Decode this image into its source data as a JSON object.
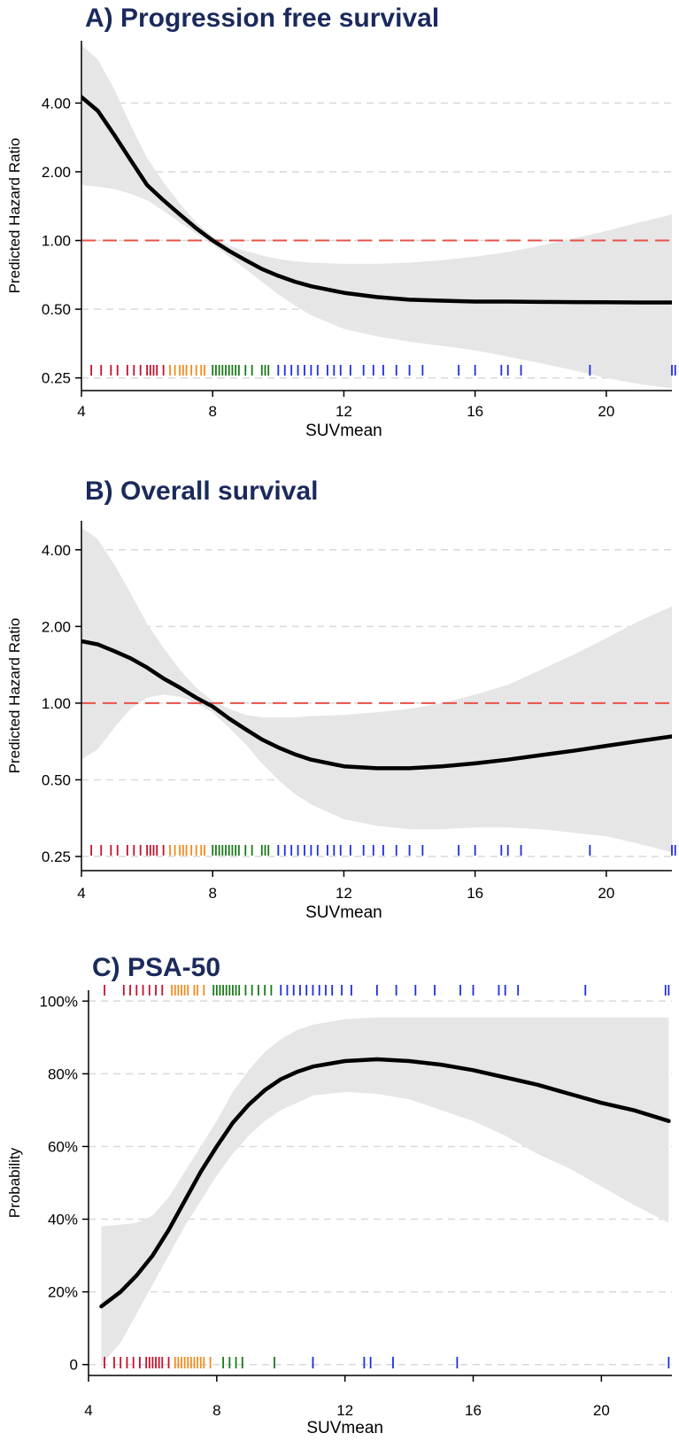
{
  "chart_data": [
    {
      "type": "line",
      "title": "A) Progression free survival",
      "xlabel": "SUVmean",
      "ylabel": "Predicted Hazard Ratio",
      "y_scale": "log2",
      "xlim": [
        4,
        22
      ],
      "ylim": [
        0.22,
        7.5
      ],
      "xticks": [
        4,
        8,
        12,
        16,
        20
      ],
      "xtick_labels": [
        "4",
        "8",
        "12",
        "16",
        "20"
      ],
      "yticks": [
        0.25,
        0.5,
        1,
        2,
        4
      ],
      "ytick_labels": [
        "0.25",
        "0.50",
        "1.00",
        "2.00",
        "4.00"
      ],
      "grid": "horizontal dashed",
      "reference_line": {
        "y": 1,
        "color": "#e8504a"
      },
      "line_color": "#000000",
      "band_color": "#e6e6e6",
      "series": [
        {
          "x": [
            4,
            4.5,
            5,
            5.5,
            6,
            6.5,
            7,
            7.5,
            8,
            8.5,
            9,
            9.5,
            10,
            10.5,
            11,
            12,
            13,
            14,
            15,
            16,
            17,
            18,
            19,
            20,
            21,
            22
          ],
          "y": [
            4.25,
            3.7,
            2.9,
            2.25,
            1.75,
            1.5,
            1.3,
            1.13,
            1.0,
            0.9,
            0.82,
            0.75,
            0.7,
            0.66,
            0.63,
            0.59,
            0.565,
            0.55,
            0.545,
            0.54,
            0.54,
            0.538,
            0.537,
            0.536,
            0.535,
            0.535
          ],
          "lower": [
            1.75,
            1.72,
            1.68,
            1.6,
            1.5,
            1.35,
            1.2,
            1.07,
            0.96,
            0.85,
            0.75,
            0.66,
            0.58,
            0.52,
            0.47,
            0.41,
            0.38,
            0.36,
            0.345,
            0.33,
            0.31,
            0.29,
            0.27,
            0.25,
            0.235,
            0.225
          ],
          "upper": [
            7.2,
            6.2,
            4.6,
            3.2,
            2.3,
            1.8,
            1.45,
            1.2,
            1.04,
            0.95,
            0.9,
            0.86,
            0.83,
            0.81,
            0.8,
            0.79,
            0.79,
            0.8,
            0.82,
            0.85,
            0.89,
            0.95,
            1.02,
            1.1,
            1.2,
            1.3
          ]
        }
      ],
      "rug": {
        "red": [
          4.3,
          4.6,
          4.9,
          5.1,
          5.4,
          5.6,
          5.8,
          6.0,
          6.1,
          6.2,
          6.3,
          6.5
        ],
        "orange": [
          6.7,
          6.85,
          7.0,
          7.1,
          7.2,
          7.35,
          7.5,
          7.65,
          7.75
        ],
        "green": [
          8.0,
          8.1,
          8.2,
          8.3,
          8.4,
          8.5,
          8.6,
          8.7,
          8.8,
          9.0,
          9.2,
          9.5,
          9.6,
          9.7
        ],
        "blue": [
          10.0,
          10.2,
          10.4,
          10.6,
          10.8,
          11.0,
          11.2,
          11.5,
          11.7,
          11.9,
          12.2,
          12.6,
          12.9,
          13.2,
          13.6,
          14.0,
          14.4,
          15.5,
          16.0,
          16.8,
          17.0,
          17.4,
          19.5,
          22.0,
          22.1
        ]
      }
    },
    {
      "type": "line",
      "title": "B) Overall survival",
      "xlabel": "SUVmean",
      "ylabel": "Predicted Hazard Ratio",
      "y_scale": "log2",
      "xlim": [
        4,
        22
      ],
      "ylim": [
        0.22,
        5.2
      ],
      "xticks": [
        4,
        8,
        12,
        16,
        20
      ],
      "xtick_labels": [
        "4",
        "8",
        "12",
        "16",
        "20"
      ],
      "yticks": [
        0.25,
        0.5,
        1,
        2,
        4
      ],
      "ytick_labels": [
        "0.25",
        "0.50",
        "1.00",
        "2.00",
        "4.00"
      ],
      "grid": "horizontal dashed",
      "reference_line": {
        "y": 1,
        "color": "#e8504a"
      },
      "line_color": "#000000",
      "band_color": "#e6e6e6",
      "series": [
        {
          "x": [
            4,
            4.5,
            5,
            5.5,
            6,
            6.5,
            7,
            7.5,
            8,
            8.5,
            9,
            9.5,
            10,
            10.5,
            11,
            12,
            13,
            14,
            15,
            16,
            17,
            18,
            19,
            20,
            21,
            22
          ],
          "y": [
            1.75,
            1.7,
            1.6,
            1.5,
            1.38,
            1.25,
            1.15,
            1.05,
            0.97,
            0.87,
            0.79,
            0.72,
            0.67,
            0.63,
            0.6,
            0.565,
            0.555,
            0.555,
            0.565,
            0.58,
            0.6,
            0.625,
            0.65,
            0.68,
            0.71,
            0.74
          ],
          "lower": [
            0.6,
            0.66,
            0.8,
            0.95,
            1.05,
            1.08,
            1.06,
            1.0,
            0.92,
            0.8,
            0.69,
            0.58,
            0.5,
            0.44,
            0.4,
            0.35,
            0.33,
            0.32,
            0.32,
            0.325,
            0.325,
            0.32,
            0.31,
            0.3,
            0.28,
            0.26
          ],
          "upper": [
            4.9,
            4.4,
            3.5,
            2.7,
            2.05,
            1.65,
            1.35,
            1.15,
            1.02,
            0.95,
            0.9,
            0.88,
            0.88,
            0.88,
            0.89,
            0.9,
            0.92,
            0.95,
            1.0,
            1.08,
            1.18,
            1.35,
            1.55,
            1.8,
            2.1,
            2.4
          ]
        }
      ],
      "rug": {
        "red": [
          4.3,
          4.6,
          4.9,
          5.1,
          5.4,
          5.6,
          5.8,
          6.0,
          6.1,
          6.2,
          6.3,
          6.5
        ],
        "orange": [
          6.7,
          6.85,
          7.0,
          7.1,
          7.2,
          7.35,
          7.5,
          7.65,
          7.75
        ],
        "green": [
          8.0,
          8.1,
          8.2,
          8.3,
          8.4,
          8.5,
          8.6,
          8.7,
          8.8,
          9.0,
          9.2,
          9.5,
          9.6,
          9.7
        ],
        "blue": [
          10.0,
          10.2,
          10.4,
          10.6,
          10.8,
          11.0,
          11.2,
          11.5,
          11.7,
          11.9,
          12.2,
          12.6,
          12.9,
          13.2,
          13.6,
          14.0,
          14.4,
          15.5,
          16.0,
          16.8,
          17.0,
          17.4,
          19.5,
          22.0,
          22.1
        ]
      }
    },
    {
      "type": "line",
      "title": "C) PSA-50",
      "xlabel": "SUVmean",
      "ylabel": "Probability",
      "y_scale": "linear",
      "xlim": [
        4,
        22.2
      ],
      "ylim": [
        -0.03,
        1.03
      ],
      "xticks": [
        4,
        8,
        12,
        16,
        20
      ],
      "xtick_labels": [
        "4",
        "8",
        "12",
        "16",
        "20"
      ],
      "yticks": [
        0,
        0.2,
        0.4,
        0.6,
        0.8,
        1.0
      ],
      "ytick_labels": [
        "0",
        "20%",
        "40%",
        "60%",
        "80%",
        "100%"
      ],
      "grid": "horizontal dashed",
      "line_color": "#000000",
      "band_color": "#e6e6e6",
      "series": [
        {
          "x": [
            4.4,
            5,
            5.5,
            6,
            6.5,
            7,
            7.5,
            8,
            8.5,
            9,
            9.5,
            10,
            10.5,
            11,
            12,
            13,
            14,
            15,
            16,
            17,
            18,
            19,
            20,
            21,
            22.1
          ],
          "y": [
            0.16,
            0.2,
            0.245,
            0.3,
            0.37,
            0.45,
            0.53,
            0.6,
            0.665,
            0.715,
            0.755,
            0.785,
            0.805,
            0.82,
            0.835,
            0.84,
            0.835,
            0.825,
            0.81,
            0.79,
            0.77,
            0.745,
            0.72,
            0.7,
            0.67
          ],
          "lower": [
            0.0,
            0.06,
            0.14,
            0.22,
            0.3,
            0.38,
            0.45,
            0.52,
            0.58,
            0.63,
            0.67,
            0.7,
            0.72,
            0.74,
            0.75,
            0.745,
            0.73,
            0.7,
            0.67,
            0.63,
            0.58,
            0.54,
            0.49,
            0.44,
            0.39
          ],
          "upper": [
            0.38,
            0.385,
            0.39,
            0.41,
            0.46,
            0.53,
            0.6,
            0.67,
            0.75,
            0.81,
            0.86,
            0.895,
            0.92,
            0.935,
            0.95,
            0.955,
            0.955,
            0.955,
            0.955,
            0.955,
            0.955,
            0.955,
            0.955,
            0.955,
            0.955
          ]
        }
      ],
      "rug_top": {
        "red": [
          4.5,
          5.1,
          5.3,
          5.5,
          5.7,
          5.9,
          6.1,
          6.3
        ],
        "orange": [
          6.6,
          6.7,
          6.8,
          6.9,
          7.0,
          7.1,
          7.3,
          7.4,
          7.6
        ],
        "green": [
          7.9,
          8.0,
          8.1,
          8.2,
          8.3,
          8.4,
          8.5,
          8.6,
          8.7,
          8.9,
          9.1,
          9.3,
          9.5,
          9.7
        ],
        "blue": [
          10.0,
          10.2,
          10.4,
          10.6,
          10.8,
          11.0,
          11.2,
          11.4,
          11.6,
          11.9,
          12.2,
          13.0,
          13.6,
          14.2,
          14.8,
          15.6,
          16.0,
          16.8,
          17.0,
          17.4,
          19.5,
          22.0,
          22.1
        ]
      },
      "rug_bottom": {
        "red": [
          4.5,
          4.8,
          5.0,
          5.2,
          5.4,
          5.6,
          5.8,
          5.9,
          6.0,
          6.1,
          6.2,
          6.3,
          6.5
        ],
        "orange": [
          6.7,
          6.8,
          6.9,
          7.0,
          7.1,
          7.2,
          7.3,
          7.4,
          7.5,
          7.6,
          7.8
        ],
        "green": [
          8.2,
          8.4,
          8.6,
          8.8,
          9.8
        ],
        "blue": [
          11.0,
          12.6,
          12.8,
          13.5,
          15.5,
          22.1
        ]
      }
    }
  ]
}
